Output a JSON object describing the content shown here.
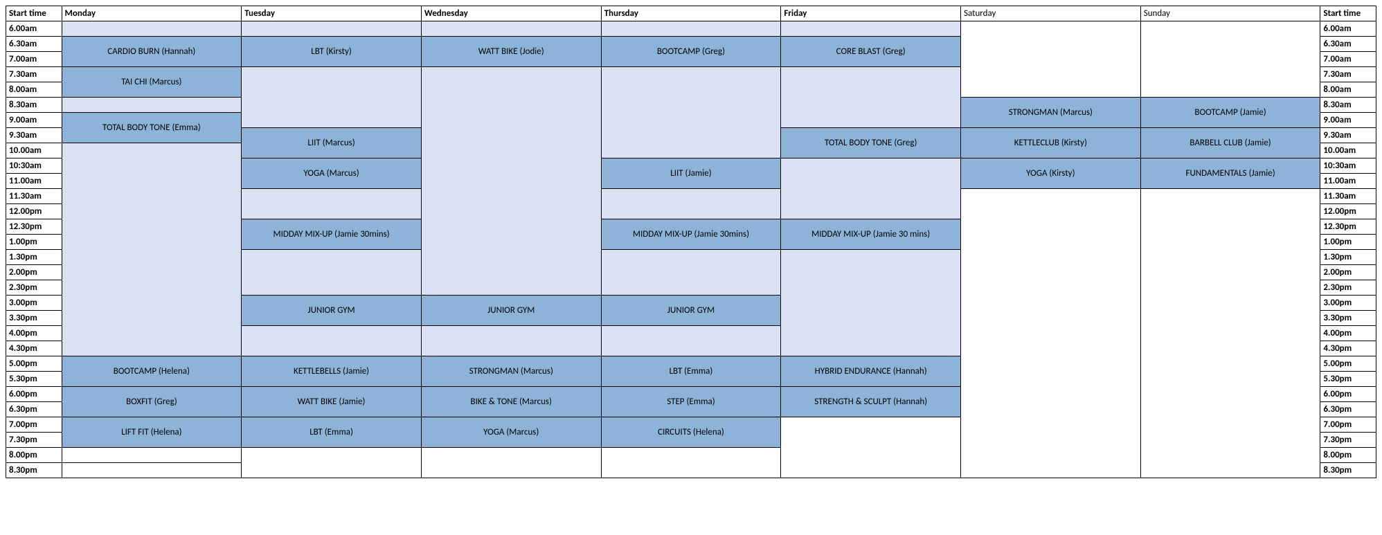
{
  "colors": {
    "dark_fill": "#8db4d8",
    "light_fill": "#d9e1f2",
    "white_fill": "#ffffff",
    "border": "#000000",
    "text": "#000000"
  },
  "headers": {
    "start_time": "Start time",
    "days": [
      "Monday",
      "Tuesday",
      "Wednesday",
      "Thursday",
      "Friday",
      "Saturday",
      "Sunday"
    ]
  },
  "time_slots": [
    "6.00am",
    "6.30am",
    "7.00am",
    "7.30am",
    "8.00am",
    "8.30am",
    "9.00am",
    "9.30am",
    "10.00am",
    "10:30am",
    "11.00am",
    "11.30am",
    "12.00pm",
    "12.30pm",
    "1.00pm",
    "1.30pm",
    "2.00pm",
    "2.30pm",
    "3.00pm",
    "3.30pm",
    "4.00pm",
    "4.30pm",
    "5.00pm",
    "5.30pm",
    "6.00pm",
    "6.30pm",
    "7.00pm",
    "7.30pm",
    "8.00pm",
    "8.30pm"
  ],
  "classes": {
    "mon_cardio": {
      "label": "CARDIO BURN (Hannah)",
      "shade": "dark"
    },
    "mon_taichi": {
      "label": "TAI CHI (Marcus)",
      "shade": "dark"
    },
    "mon_tbt": {
      "label": "TOTAL BODY TONE (Emma)",
      "shade": "dark"
    },
    "mon_bootpm": {
      "label": "BOOTCAMP (Helena)",
      "shade": "dark"
    },
    "mon_boxfit": {
      "label": "BOXFIT (Greg)",
      "shade": "dark"
    },
    "mon_liftfit": {
      "label": "LIFT FIT (Helena)",
      "shade": "dark"
    },
    "tue_lbt": {
      "label": "LBT (Kirsty)",
      "shade": "dark"
    },
    "tue_liit": {
      "label": "LIIT (Marcus)",
      "shade": "dark"
    },
    "tue_yoga": {
      "label": "YOGA (Marcus)",
      "shade": "dark"
    },
    "tue_midday": {
      "label": "MIDDAY MIX-UP (Jamie 30mins)",
      "shade": "dark"
    },
    "tue_junior": {
      "label": "JUNIOR GYM",
      "shade": "dark"
    },
    "tue_kb": {
      "label": "KETTLEBELLS (Jamie)",
      "shade": "dark"
    },
    "tue_watt": {
      "label": "WATT BIKE (Jamie)",
      "shade": "dark"
    },
    "tue_lbt2": {
      "label": "LBT (Emma)",
      "shade": "dark"
    },
    "wed_watt": {
      "label": "WATT BIKE (Jodie)",
      "shade": "dark"
    },
    "wed_junior": {
      "label": "JUNIOR GYM",
      "shade": "dark"
    },
    "wed_strong": {
      "label": "STRONGMAN (Marcus)",
      "shade": "dark"
    },
    "wed_bike": {
      "label": "BIKE & TONE (Marcus)",
      "shade": "dark"
    },
    "wed_yoga": {
      "label": "YOGA (Marcus)",
      "shade": "dark"
    },
    "thu_boot": {
      "label": "BOOTCAMP (Greg)",
      "shade": "dark"
    },
    "thu_liit": {
      "label": "LIIT (Jamie)",
      "shade": "dark"
    },
    "thu_midday": {
      "label": "MIDDAY MIX-UP (Jamie 30mins)",
      "shade": "dark"
    },
    "thu_junior": {
      "label": "JUNIOR GYM",
      "shade": "dark"
    },
    "thu_lbt": {
      "label": "LBT (Emma)",
      "shade": "dark"
    },
    "thu_step": {
      "label": "STEP (Emma)",
      "shade": "dark"
    },
    "thu_circ": {
      "label": "CIRCUITS (Helena)",
      "shade": "dark"
    },
    "fri_core": {
      "label": "CORE BLAST (Greg)",
      "shade": "dark"
    },
    "fri_tbt": {
      "label": "TOTAL BODY TONE (Greg)",
      "shade": "dark"
    },
    "fri_midday": {
      "label": "MIDDAY MIX-UP (Jamie 30 mins)",
      "shade": "dark"
    },
    "fri_hybrid": {
      "label": "HYBRID ENDURANCE (Hannah)",
      "shade": "dark"
    },
    "fri_strength": {
      "label": "STRENGTH & SCULPT (Hannah)",
      "shade": "dark"
    },
    "sat_strong": {
      "label": "STRONGMAN (Marcus)",
      "shade": "dark"
    },
    "sat_kettle": {
      "label": "KETTLECLUB (Kirsty)",
      "shade": "dark"
    },
    "sat_yoga": {
      "label": "YOGA (Kirsty)",
      "shade": "dark"
    },
    "sun_boot": {
      "label": "BOOTCAMP (Jamie)",
      "shade": "dark"
    },
    "sun_barbell": {
      "label": "BARBELL CLUB (Jamie)",
      "shade": "dark"
    },
    "sun_fund": {
      "label": "FUNDAMENTALS (Jamie)",
      "shade": "dark"
    }
  },
  "grid": [
    [
      {
        "t": "light"
      },
      {
        "t": "light"
      },
      {
        "t": "light"
      },
      {
        "t": "light"
      },
      {
        "t": "light"
      },
      {
        "t": "white",
        "rs": 5
      },
      {
        "t": "white",
        "rs": 5
      }
    ],
    [
      {
        "c": "mon_cardio",
        "rs": 2
      },
      {
        "c": "tue_lbt",
        "rs": 2
      },
      {
        "c": "wed_watt",
        "rs": 2
      },
      {
        "c": "thu_boot",
        "rs": 2
      },
      {
        "c": "fri_core",
        "rs": 2
      }
    ],
    [],
    [
      {
        "c": "mon_taichi",
        "rs": 2
      },
      {
        "t": "light",
        "rs": 4
      },
      {
        "t": "light",
        "rs": 15
      },
      {
        "t": "light",
        "rs": 6
      },
      {
        "t": "light",
        "rs": 4
      }
    ],
    [],
    [
      {
        "t": "light"
      },
      {
        "c": "sat_strong",
        "rs": 2
      },
      {
        "c": "sun_boot",
        "rs": 2
      }
    ],
    [
      {
        "c": "mon_tbt",
        "rs": 2
      }
    ],
    [
      {
        "c": "tue_liit",
        "rs": 2
      },
      {
        "c": "fri_tbt",
        "rs": 2
      },
      {
        "c": "sat_kettle",
        "rs": 2
      },
      {
        "c": "sun_barbell",
        "rs": 2
      }
    ],
    [
      {
        "t": "light",
        "rs": 14
      }
    ],
    [
      {
        "c": "tue_yoga",
        "rs": 2
      },
      {
        "c": "thu_liit",
        "rs": 2
      },
      {
        "t": "light",
        "rs": 4
      },
      {
        "c": "sat_yoga",
        "rs": 2
      },
      {
        "c": "sun_fund",
        "rs": 2
      }
    ],
    [],
    [
      {
        "t": "light",
        "rs": 2
      },
      {
        "t": "light",
        "rs": 2
      },
      {
        "t": "white",
        "rs": 19
      },
      {
        "t": "white",
        "rs": 19
      }
    ],
    [],
    [
      {
        "c": "tue_midday",
        "rs": 2
      },
      {
        "c": "thu_midday",
        "rs": 2
      },
      {
        "c": "fri_midday",
        "rs": 2
      }
    ],
    [],
    [
      {
        "t": "light",
        "rs": 3
      },
      {
        "t": "light",
        "rs": 3
      },
      {
        "t": "light",
        "rs": 7
      }
    ],
    [],
    [],
    [
      {
        "c": "tue_junior",
        "rs": 2
      },
      {
        "c": "wed_junior",
        "rs": 2
      },
      {
        "c": "thu_junior",
        "rs": 2
      }
    ],
    [],
    [
      {
        "t": "light",
        "rs": 2
      },
      {
        "t": "light",
        "rs": 2
      },
      {
        "t": "light",
        "rs": 2
      }
    ],
    [],
    [
      {
        "c": "mon_bootpm",
        "rs": 2
      },
      {
        "c": "tue_kb",
        "rs": 2
      },
      {
        "c": "wed_strong",
        "rs": 2
      },
      {
        "c": "thu_lbt",
        "rs": 2
      },
      {
        "c": "fri_hybrid",
        "rs": 2
      }
    ],
    [],
    [
      {
        "c": "mon_boxfit",
        "rs": 2
      },
      {
        "c": "tue_watt",
        "rs": 2
      },
      {
        "c": "wed_bike",
        "rs": 2
      },
      {
        "c": "thu_step",
        "rs": 2
      },
      {
        "c": "fri_strength",
        "rs": 2
      }
    ],
    [],
    [
      {
        "c": "mon_liftfit",
        "rs": 2
      },
      {
        "c": "tue_lbt2",
        "rs": 2
      },
      {
        "c": "wed_yoga",
        "rs": 2
      },
      {
        "c": "thu_circ",
        "rs": 2
      },
      {
        "t": "white",
        "rs": 4
      }
    ],
    [],
    [
      {
        "t": "white"
      },
      {
        "t": "white",
        "rs": 2
      },
      {
        "t": "white",
        "rs": 2
      },
      {
        "t": "white",
        "rs": 2
      }
    ],
    [
      {
        "t": "white"
      }
    ]
  ]
}
